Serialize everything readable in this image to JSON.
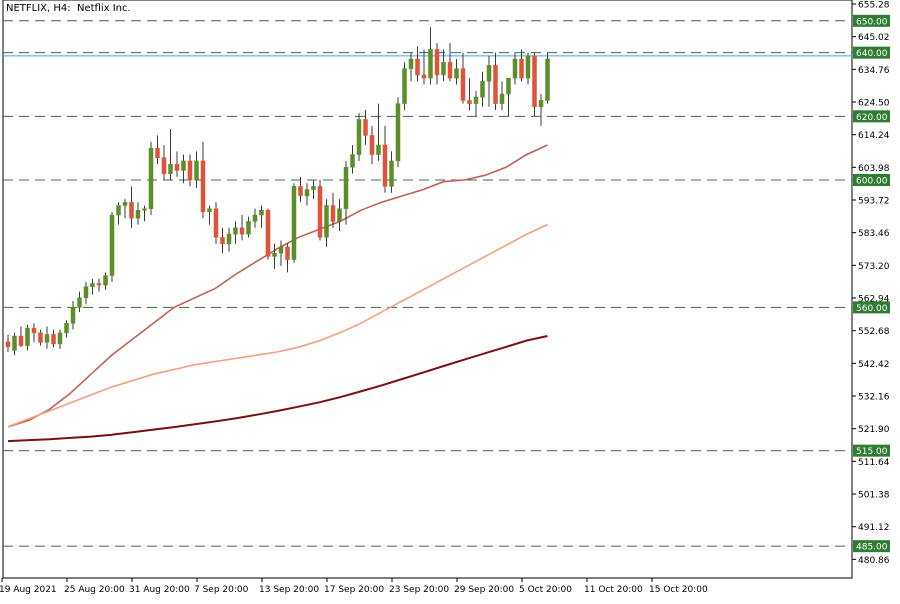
{
  "chart_data": {
    "type": "candlestick",
    "title": "NETFLIX, H4:  Netflix Inc.",
    "ylim": [
      476.26,
      655.28
    ],
    "y_ticks": [
      "655.28",
      "645.02",
      "634.76",
      "624.50",
      "614.24",
      "603.98",
      "593.72",
      "583.46",
      "573.20",
      "562.94",
      "552.68",
      "542.42",
      "532.16",
      "521.90",
      "511.64",
      "501.38",
      "491.12",
      "480.86"
    ],
    "x_tick_labels": [
      {
        "label": "19 Aug 2021",
        "bar": 0
      },
      {
        "label": "25 Aug 20:00",
        "bar": 10
      },
      {
        "label": "31 Aug 20:00",
        "bar": 20
      },
      {
        "label": "7 Sep 20:00",
        "bar": 30
      },
      {
        "label": "13 Sep 20:00",
        "bar": 40
      },
      {
        "label": "17 Sep 20:00",
        "bar": 50
      },
      {
        "label": "23 Sep 20:00",
        "bar": 60
      },
      {
        "label": "29 Sep 20:00",
        "bar": 70
      },
      {
        "label": "5 Oct 20:00",
        "bar": 80
      },
      {
        "label": "11 Oct 20:00",
        "bar": 90
      },
      {
        "label": "15 Oct 20:00",
        "bar": 100
      }
    ],
    "levels": [
      {
        "value": 650.0,
        "label": "650.00"
      },
      {
        "value": 640.0,
        "label": "640.00"
      },
      {
        "value": 620.0,
        "label": "620.00"
      },
      {
        "value": 600.0,
        "label": "600.00"
      },
      {
        "value": 560.0,
        "label": "560.00"
      },
      {
        "value": 515.0,
        "label": "515.00"
      },
      {
        "value": 485.0,
        "label": "485.00"
      }
    ],
    "price_line": {
      "value": 639.0,
      "color": "#4a9cff"
    },
    "candles": [
      [
        549.2,
        551.4,
        546.0,
        547.6
      ],
      [
        546.5,
        552.0,
        545.0,
        551.0
      ],
      [
        551.0,
        554.0,
        547.5,
        548.0
      ],
      [
        548.0,
        554.5,
        546.5,
        553.5
      ],
      [
        553.5,
        555.0,
        549.0,
        552.0
      ],
      [
        552.0,
        553.0,
        548.0,
        549.0
      ],
      [
        549.0,
        554.0,
        547.0,
        551.5
      ],
      [
        551.5,
        553.0,
        547.5,
        548.5
      ],
      [
        548.5,
        553.0,
        547.0,
        552.0
      ],
      [
        552.0,
        556.0,
        550.5,
        555.0
      ],
      [
        555.0,
        562.0,
        553.0,
        560.0
      ],
      [
        560.0,
        565.0,
        558.5,
        563.0
      ],
      [
        563.0,
        568.0,
        561.0,
        566.5
      ],
      [
        566.5,
        569.0,
        564.0,
        567.5
      ],
      [
        567.5,
        569.0,
        565.0,
        567.0
      ],
      [
        567.0,
        571.0,
        565.5,
        570.0
      ],
      [
        570.0,
        590.0,
        568.0,
        589.0
      ],
      [
        589.0,
        593.0,
        586.0,
        592.0
      ],
      [
        592.0,
        594.0,
        588.0,
        593.0
      ],
      [
        593.0,
        598.0,
        585.0,
        588.0
      ],
      [
        588.0,
        593.0,
        586.0,
        590.5
      ],
      [
        590.5,
        592.0,
        587.0,
        591.0
      ],
      [
        591.0,
        612.0,
        589.0,
        610.0
      ],
      [
        610.0,
        614.0,
        605.0,
        607.0
      ],
      [
        607.0,
        611.0,
        600.0,
        602.0
      ],
      [
        602.0,
        616.0,
        600.0,
        605.0
      ],
      [
        605.0,
        609.0,
        601.0,
        603.0
      ],
      [
        603.0,
        608.0,
        599.0,
        606.0
      ],
      [
        606.0,
        608.0,
        598.0,
        600.0
      ],
      [
        600.0,
        609.0,
        597.5,
        606.0
      ],
      [
        606.0,
        612.0,
        588.0,
        590.0
      ],
      [
        590.0,
        592.0,
        586.0,
        591.0
      ],
      [
        591.0,
        593.0,
        580.0,
        582.0
      ],
      [
        582.0,
        585.0,
        577.0,
        580.0
      ],
      [
        580.0,
        585.0,
        577.5,
        583.0
      ],
      [
        583.0,
        587.0,
        580.0,
        585.0
      ],
      [
        585.0,
        589.0,
        581.0,
        583.0
      ],
      [
        583.0,
        588.5,
        582.0,
        587.0
      ],
      [
        587.0,
        591.0,
        585.0,
        589.0
      ],
      [
        589.0,
        592.0,
        585.0,
        590.5
      ],
      [
        590.5,
        591.0,
        575.0,
        576.0
      ],
      [
        576.0,
        580.0,
        572.0,
        577.0
      ],
      [
        577.0,
        581.0,
        573.0,
        579.0
      ],
      [
        579.0,
        580.0,
        571.0,
        575.0
      ],
      [
        575.0,
        599.0,
        574.0,
        598.0
      ],
      [
        598.0,
        601.0,
        593.0,
        595.0
      ],
      [
        595.0,
        599.0,
        592.0,
        597.0
      ],
      [
        597.0,
        600.0,
        594.0,
        598.0
      ],
      [
        598.0,
        600.0,
        581.0,
        582.0
      ],
      [
        582.0,
        594.0,
        579.0,
        592.0
      ],
      [
        592.0,
        596.0,
        585.0,
        587.0
      ],
      [
        587.0,
        594.0,
        584.0,
        591.0
      ],
      [
        591.0,
        606.0,
        586.0,
        604.0
      ],
      [
        604.0,
        611.0,
        602.0,
        608.0
      ],
      [
        608.0,
        621.0,
        606.0,
        619.0
      ],
      [
        619.0,
        622.0,
        611.0,
        614.0
      ],
      [
        614.0,
        617.0,
        605.0,
        608.0
      ],
      [
        608.0,
        624.0,
        606.0,
        611.0
      ],
      [
        611.0,
        617.0,
        596.0,
        598.0
      ],
      [
        598.0,
        609.0,
        596.0,
        606.0
      ],
      [
        606.0,
        626.0,
        604.0,
        624.0
      ],
      [
        624.0,
        637.0,
        622.0,
        635.0
      ],
      [
        635.0,
        640.0,
        631.0,
        638.0
      ],
      [
        638.0,
        642.0,
        631.0,
        633.0
      ],
      [
        633.0,
        641.0,
        630.0,
        632.0
      ],
      [
        632.0,
        648.0,
        630.0,
        641.0
      ],
      [
        641.0,
        643.0,
        630.0,
        633.0
      ],
      [
        633.0,
        641.0,
        631.0,
        637.0
      ],
      [
        637.0,
        643.0,
        631.0,
        632.0
      ],
      [
        632.0,
        638.0,
        630.0,
        635.0
      ],
      [
        635.0,
        640.0,
        624.0,
        625.0
      ],
      [
        625.0,
        632.0,
        622.0,
        624.0
      ],
      [
        624.0,
        628.0,
        620.0,
        626.0
      ],
      [
        626.0,
        634.0,
        623.0,
        631.0
      ],
      [
        631.0,
        639.0,
        623.0,
        636.0
      ],
      [
        636.0,
        640.0,
        622.0,
        624.0
      ],
      [
        624.0,
        631.0,
        622.0,
        627.0
      ],
      [
        627.0,
        631.0,
        620.0,
        632.0
      ],
      [
        632.0,
        640.0,
        630.0,
        638.0
      ],
      [
        638.0,
        641.0,
        631.0,
        632.0
      ],
      [
        632.0,
        640.0,
        630.0,
        639.0
      ],
      [
        639.0,
        640.0,
        620.0,
        623.0
      ],
      [
        623.0,
        627.0,
        617.0,
        625.0
      ],
      [
        625.0,
        640.0,
        624.0,
        638.0
      ]
    ],
    "moving_averages": [
      {
        "color": "#c0605a",
        "values": [
          522.5,
          524.5,
          528.0,
          533.0,
          539.0,
          545.0,
          550.0,
          555.0,
          560.0,
          563.0,
          566.0,
          570.5,
          574.5,
          578.5,
          582.0,
          584.5,
          587.0,
          590.5,
          593.0,
          595.0,
          597.0,
          599.5,
          600.0,
          601.5,
          604.0,
          608.0,
          611.0
        ]
      },
      {
        "color": "#f4a080",
        "values": [
          522.5,
          525.0,
          527.5,
          530.0,
          532.5,
          535.0,
          537.0,
          539.0,
          540.5,
          542.0,
          543.0,
          544.0,
          545.0,
          546.0,
          547.5,
          549.5,
          552.0,
          555.0,
          558.5,
          562.0,
          565.5,
          569.0,
          572.5,
          576.0,
          579.5,
          583.0,
          586.0
        ]
      },
      {
        "color": "#7a1010",
        "values": [
          518.0,
          518.3,
          518.6,
          519.0,
          519.4,
          520.0,
          520.8,
          521.6,
          522.4,
          523.3,
          524.2,
          525.2,
          526.3,
          527.5,
          528.8,
          530.2,
          531.8,
          533.6,
          535.5,
          537.5,
          539.5,
          541.6,
          543.6,
          545.6,
          547.6,
          549.6,
          551.0
        ]
      }
    ]
  }
}
